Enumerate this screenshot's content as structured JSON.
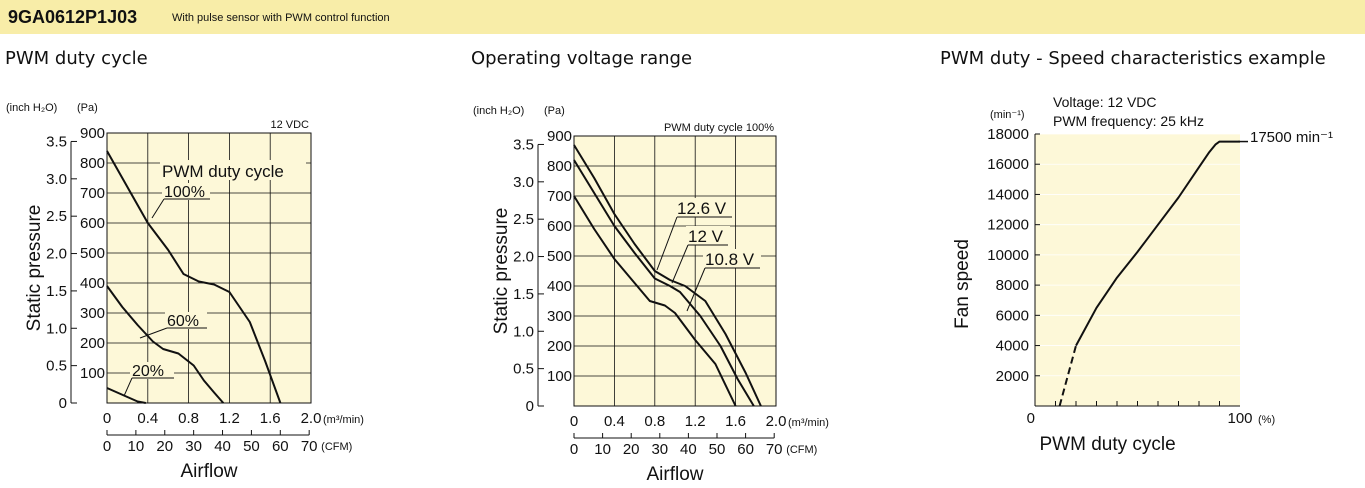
{
  "header": {
    "model": "9GA0612P1J03",
    "description": "With pulse sensor with PWM control function",
    "bg_color": "#f8eda8"
  },
  "plot_bg_color": "#fdf8d8",
  "chart_data": [
    {
      "type": "line",
      "title": "PWM duty cycle",
      "ylabel": "Static pressure",
      "xlabel": "Airflow",
      "y_units": [
        "(inch H₂O)",
        "(Pa)"
      ],
      "x_units": [
        "(m³/min)",
        "(CFM)"
      ],
      "xlim": [
        0,
        2.0
      ],
      "ylim": [
        0,
        900
      ],
      "x_ticks": [
        "0",
        "0.4",
        "0.8",
        "1.2",
        "1.6",
        "2.0"
      ],
      "y_ticks_pa": [
        "100",
        "200",
        "300",
        "400",
        "500",
        "600",
        "700",
        "800",
        "900"
      ],
      "y_ticks_inch": [
        "0",
        "0.5",
        "1.0",
        "1.5",
        "2.0",
        "2.5",
        "3.0",
        "3.5"
      ],
      "cfm_ticks": [
        "0",
        "10",
        "20",
        "30",
        "40",
        "50",
        "60",
        "70"
      ],
      "annotation": "12 VDC",
      "legend_title": "PWM duty cycle",
      "series": [
        {
          "name": "100%",
          "x": [
            0,
            0.2,
            0.4,
            0.6,
            0.75,
            0.9,
            1.05,
            1.2,
            1.4,
            1.55,
            1.7
          ],
          "y": [
            840,
            720,
            600,
            510,
            430,
            405,
            395,
            370,
            270,
            140,
            0
          ]
        },
        {
          "name": "60%",
          "x": [
            0,
            0.15,
            0.3,
            0.45,
            0.55,
            0.7,
            0.85,
            0.95,
            1.05,
            1.14
          ],
          "y": [
            390,
            320,
            260,
            205,
            180,
            165,
            125,
            75,
            35,
            0
          ]
        },
        {
          "name": "20%",
          "x": [
            0,
            0.1,
            0.2,
            0.3,
            0.38
          ],
          "y": [
            50,
            35,
            20,
            5,
            0
          ]
        }
      ]
    },
    {
      "type": "line",
      "title": "Operating voltage range",
      "ylabel": "Static pressure",
      "xlabel": "Airflow",
      "y_units": [
        "(inch H₂O)",
        "(Pa)"
      ],
      "x_units": [
        "(m³/min)",
        "(CFM)"
      ],
      "xlim": [
        0,
        2.0
      ],
      "ylim": [
        0,
        900
      ],
      "x_ticks": [
        "0",
        "0.4",
        "0.8",
        "1.2",
        "1.6",
        "2.0"
      ],
      "y_ticks_pa": [
        "100",
        "200",
        "300",
        "400",
        "500",
        "600",
        "700",
        "800",
        "900"
      ],
      "y_ticks_inch": [
        "0",
        "0.5",
        "1.0",
        "1.5",
        "2.0",
        "2.5",
        "3.0",
        "3.5"
      ],
      "cfm_ticks": [
        "0",
        "10",
        "20",
        "30",
        "40",
        "50",
        "60",
        "70"
      ],
      "annotation": "PWM duty cycle 100%",
      "series": [
        {
          "name": "12.6 V",
          "x": [
            0,
            0.2,
            0.4,
            0.6,
            0.8,
            0.95,
            1.1,
            1.3,
            1.5,
            1.7,
            1.85
          ],
          "y": [
            870,
            760,
            640,
            540,
            450,
            420,
            400,
            350,
            240,
            110,
            0
          ]
        },
        {
          "name": "12 V",
          "x": [
            0,
            0.2,
            0.4,
            0.6,
            0.8,
            0.95,
            1.05,
            1.25,
            1.45,
            1.62,
            1.78
          ],
          "y": [
            820,
            710,
            600,
            510,
            425,
            400,
            380,
            300,
            200,
            90,
            0
          ]
        },
        {
          "name": "10.8 V",
          "x": [
            0,
            0.2,
            0.4,
            0.6,
            0.75,
            0.9,
            1.0,
            1.2,
            1.4,
            1.6
          ],
          "y": [
            700,
            590,
            490,
            410,
            350,
            335,
            310,
            220,
            140,
            0
          ]
        }
      ]
    },
    {
      "type": "line",
      "title": "PWM duty - Speed characteristics example",
      "ylabel": "Fan speed",
      "xlabel": "PWM duty cycle",
      "y_unit": "(min⁻¹)",
      "x_unit": "(%)",
      "xlim": [
        0,
        100
      ],
      "ylim": [
        0,
        18000
      ],
      "x_ticks": [
        "0",
        "100"
      ],
      "y_ticks": [
        "2000",
        "4000",
        "6000",
        "8000",
        "10000",
        "12000",
        "14000",
        "16000",
        "18000"
      ],
      "annotations": [
        "Voltage: 12 VDC",
        "PWM frequency: 25 kHz"
      ],
      "end_label": "17500 min⁻¹",
      "series": [
        {
          "name": "dashed-low",
          "style": "dashed",
          "x": [
            12,
            14,
            16,
            18,
            20
          ],
          "y": [
            0,
            1000,
            2000,
            3000,
            4000
          ]
        },
        {
          "name": "solid",
          "style": "solid",
          "x": [
            20,
            30,
            40,
            50,
            60,
            70,
            80,
            85,
            88,
            90,
            93,
            100
          ],
          "y": [
            4000,
            6500,
            8500,
            10200,
            12000,
            13800,
            15800,
            16800,
            17300,
            17500,
            17500,
            17500
          ]
        }
      ]
    }
  ]
}
